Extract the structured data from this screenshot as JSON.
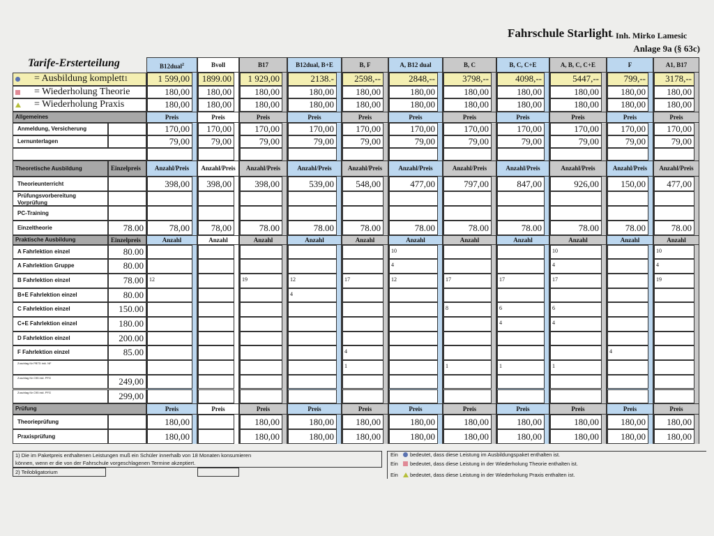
{
  "header": {
    "company": "Fahrschule Starlight",
    "owner": "- Inh. Mirko Lamesic",
    "annex": "Anlage 9a (§ 63c)"
  },
  "table": {
    "title": "Tarife-Ersterteilung",
    "columns": [
      {
        "name": "B12dual",
        "footnote": "2"
      },
      {
        "name": "Bvoll"
      },
      {
        "name": "B17"
      },
      {
        "name": "B12dual, B+E"
      },
      {
        "name": "B, F"
      },
      {
        "name": "A, B12 dual"
      },
      {
        "name": "B, C"
      },
      {
        "name": "B, C, C+E"
      },
      {
        "name": "A, B, C, C+E"
      },
      {
        "name": "F"
      },
      {
        "name": "A1, B17"
      }
    ],
    "package_rows": [
      {
        "label": "= Ausbildung komplett",
        "footnote": "1",
        "values": [
          "1 599,00",
          "1899.00",
          "1 929,00",
          "2138.-",
          "2598,--",
          "2848,--",
          "3798,--",
          "4098,--",
          "5447,--",
          "799,--",
          "3178,--"
        ]
      },
      {
        "label": "= Wiederholung Theorie",
        "values": [
          "180,00",
          "180,00",
          "180,00",
          "180,00",
          "180,00",
          "180,00",
          "180,00",
          "180,00",
          "180,00",
          "180,00",
          "180,00"
        ]
      },
      {
        "label": "= Wiederholung Praxis",
        "values": [
          "180,00",
          "180,00",
          "180,00",
          "180,00",
          "180,00",
          "180,00",
          "180,00",
          "180,00",
          "180,00",
          "180,00",
          "180,00"
        ]
      }
    ],
    "sections": [
      {
        "title": "Allgemeines",
        "column_heading": "Preis",
        "rows": [
          {
            "label": "Anmeldung, Versicherung",
            "values": [
              "170,00",
              "170,00",
              "170,00",
              "170,00",
              "170,00",
              "170,00",
              "170,00",
              "170,00",
              "170,00",
              "170,00",
              "170,00"
            ]
          },
          {
            "label": "Lernunterlagen",
            "values": [
              "79,00",
              "79,00",
              "79,00",
              "79,00",
              "79,00",
              "79,00",
              "79,00",
              "79,00",
              "79,00",
              "79,00",
              "79,00"
            ]
          }
        ]
      },
      {
        "title": "Theoretische Ausbildung",
        "unit_heading": "Einzelpreis",
        "column_heading": "Anzahl/Preis",
        "rows": [
          {
            "label": "Theorieunterricht",
            "values": [
              "398,00",
              "398,00",
              "398,00",
              "539,00",
              "548,00",
              "477,00",
              "797,00",
              "847,00",
              "926,00",
              "150,00",
              "477,00"
            ]
          },
          {
            "label": "Prüfungsvorbereitung Vorprüfung",
            "values": [
              null,
              null,
              null,
              null,
              null,
              null,
              null,
              null,
              null,
              null,
              null
            ]
          },
          {
            "label": "PC-Training",
            "values": [
              null,
              null,
              null,
              null,
              null,
              null,
              null,
              null,
              null,
              null,
              null
            ]
          },
          {
            "label": "Einzeltheorie",
            "unit_price": "78.00",
            "values": [
              "78,00",
              "78,00",
              "78.00",
              "78.00",
              "78.00",
              "78.00",
              "78.00",
              "78.00",
              "78.00",
              "78.00",
              "78.00"
            ]
          }
        ]
      },
      {
        "title": "Praktische Ausbildung",
        "unit_heading": "Einzelpreis",
        "column_heading": "Anzahl",
        "rows": [
          {
            "label": "A Fahrlektion einzel",
            "unit_price": "80.00",
            "values": [
              null,
              null,
              null,
              null,
              null,
              "10",
              null,
              null,
              "10",
              null,
              "10"
            ]
          },
          {
            "label": "A Fahrlektion Gruppe",
            "unit_price": "80.00",
            "values": [
              null,
              null,
              null,
              null,
              null,
              "4",
              null,
              null,
              "4",
              null,
              "4"
            ]
          },
          {
            "label": "B Fahrlektion einzel",
            "unit_price": "78.00",
            "values": [
              "12",
              null,
              "19",
              "12",
              "17",
              "12",
              "17",
              "17",
              "17",
              null,
              "19"
            ]
          },
          {
            "label": "B+E Fahrlektion einzel",
            "unit_price": "80.00",
            "values": [
              null,
              null,
              null,
              "4",
              null,
              null,
              null,
              null,
              null,
              null,
              null
            ]
          },
          {
            "label": "C Fahrlektion einzel",
            "unit_price": "150.00",
            "values": [
              null,
              null,
              null,
              null,
              null,
              null,
              "8",
              "6",
              "6",
              null,
              null
            ]
          },
          {
            "label": "C+E Fahrlektion einzel",
            "unit_price": "180.00",
            "values": [
              null,
              null,
              null,
              null,
              null,
              null,
              null,
              "4",
              "4",
              null,
              null
            ]
          },
          {
            "label": "D Fahrlektion einzel",
            "unit_price": "200.00",
            "values": [
              null,
              null,
              null,
              null,
              null,
              null,
              null,
              null,
              null,
              null,
              null
            ]
          },
          {
            "label": "F Fahrlektion einzel",
            "unit_price": "85.00",
            "values": [
              null,
              null,
              null,
              null,
              "4",
              null,
              null,
              null,
              null,
              "4",
              null
            ]
          },
          {
            "label": "Zuschlag für PBTD inkl. NF",
            "values": [
              null,
              null,
              null,
              null,
              "1",
              null,
              "1",
              "1",
              "1",
              null,
              null
            ]
          },
          {
            "label": "Zuschlag für C95 inkl. PFG",
            "unit_price": "249,00",
            "values": [
              null,
              null,
              null,
              null,
              null,
              null,
              null,
              null,
              null,
              null,
              null
            ]
          },
          {
            "label": "Zuschlag für C95 inkl. PFG",
            "unit_price": "299,00",
            "values": [
              null,
              null,
              null,
              null,
              null,
              null,
              null,
              null,
              null,
              null,
              null
            ]
          }
        ]
      },
      {
        "title": "Prüfung",
        "column_heading": "Preis",
        "rows": [
          {
            "label": "Theorieprüfung",
            "values": [
              "180,00",
              null,
              "180,00",
              "180,00",
              "180,00",
              "180,00",
              "180,00",
              "180,00",
              "180,00",
              "180,00",
              "180,00"
            ]
          },
          {
            "label": "Praxisprüfung",
            "values": [
              "180,00",
              null,
              "180,00",
              "180,00",
              "180,00",
              "180,00",
              "180,00",
              "180,00",
              "180,00",
              "180,00",
              "180,00"
            ]
          }
        ]
      }
    ]
  },
  "footnotes": [
    "1) Die im Paketpreis enthaltenen Leistungen muß ein Schüler innerhalb von 18 Monaten konsumieren können, wenn er die von der Fahrschule vorgeschlagenen Termine akzeptiert.",
    "2) Teilobligatorium"
  ],
  "legend": [
    {
      "prefix": "Ein",
      "text": "bedeutet, dass diese Leistung im Ausbildungspaket enthalten ist."
    },
    {
      "prefix": "Ein",
      "text": "bedeutet, dass diese Leistung in der Wiederholung Theorie enthalten ist."
    },
    {
      "prefix": "Ein",
      "text": "bedeutet, dass diese Leistung in der Wiederholung Praxis enthalten ist."
    }
  ]
}
